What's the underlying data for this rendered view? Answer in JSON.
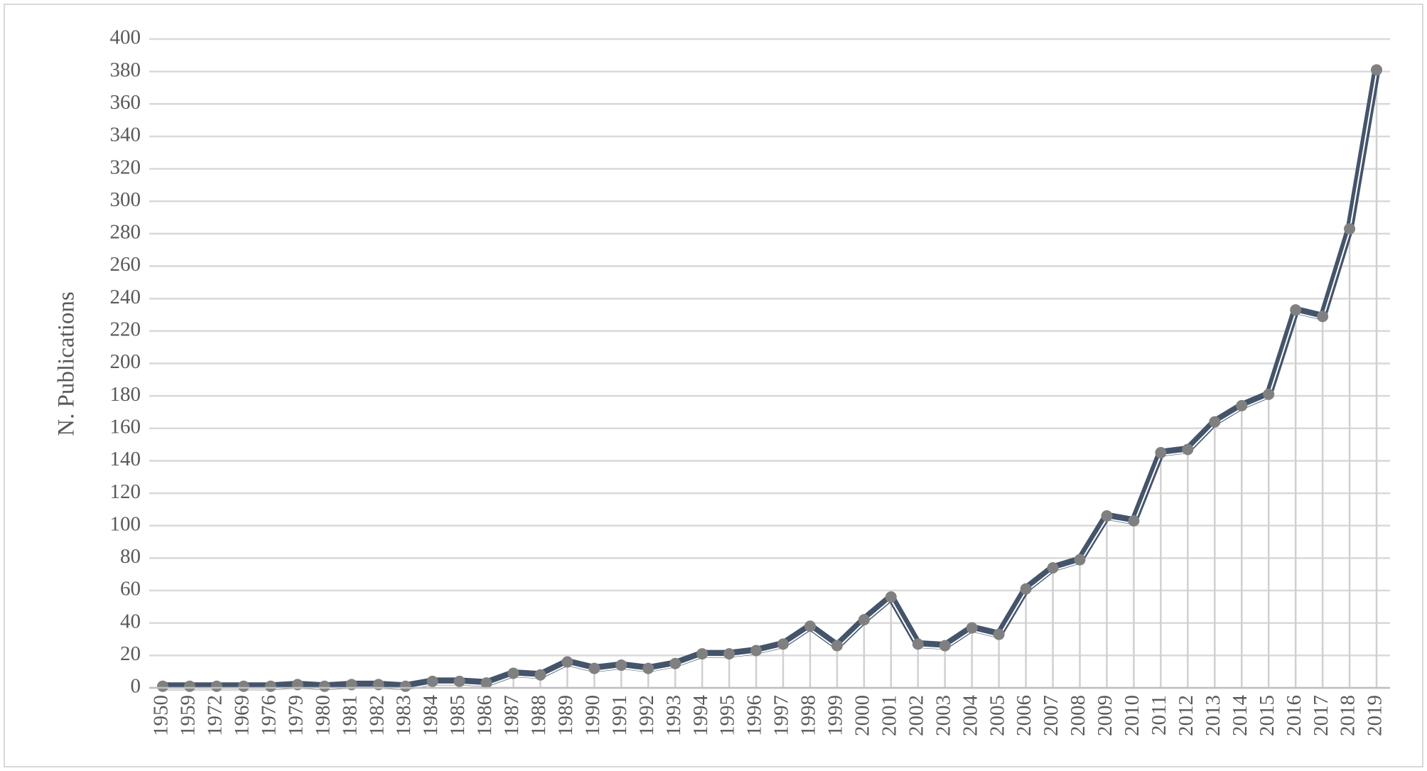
{
  "chart_data": {
    "type": "line",
    "y_label": "N. Publications",
    "categories": [
      "1950",
      "1959",
      "1972",
      "1969",
      "1976",
      "1979",
      "1980",
      "1981",
      "1982",
      "1983",
      "1984",
      "1985",
      "1986",
      "1987",
      "1988",
      "1989",
      "1990",
      "1991",
      "1992",
      "1993",
      "1994",
      "1995",
      "1996",
      "1997",
      "1998",
      "1999",
      "2000",
      "2001",
      "2002",
      "2003",
      "2004",
      "2005",
      "2006",
      "2007",
      "2008",
      "2009",
      "2010",
      "2011",
      "2012",
      "2013",
      "2014",
      "2015",
      "2016",
      "2017",
      "2018",
      "2019"
    ],
    "values": [
      1,
      1,
      1,
      1,
      1,
      2,
      1,
      2,
      2,
      1,
      4,
      4,
      3,
      9,
      8,
      16,
      12,
      14,
      12,
      15,
      21,
      21,
      23,
      27,
      38,
      26,
      42,
      56,
      27,
      26,
      37,
      33,
      61,
      74,
      79,
      106,
      103,
      145,
      147,
      164,
      174,
      181,
      233,
      229,
      283,
      381
    ],
    "color": "#44546a",
    "marker_color": "#808080",
    "drop_lines": true,
    "ylim": [
      0,
      400
    ],
    "yticks": [
      0,
      20,
      40,
      60,
      80,
      100,
      120,
      140,
      160,
      180,
      200,
      220,
      240,
      260,
      280,
      300,
      320,
      340,
      360,
      380,
      400
    ],
    "grid": true
  }
}
